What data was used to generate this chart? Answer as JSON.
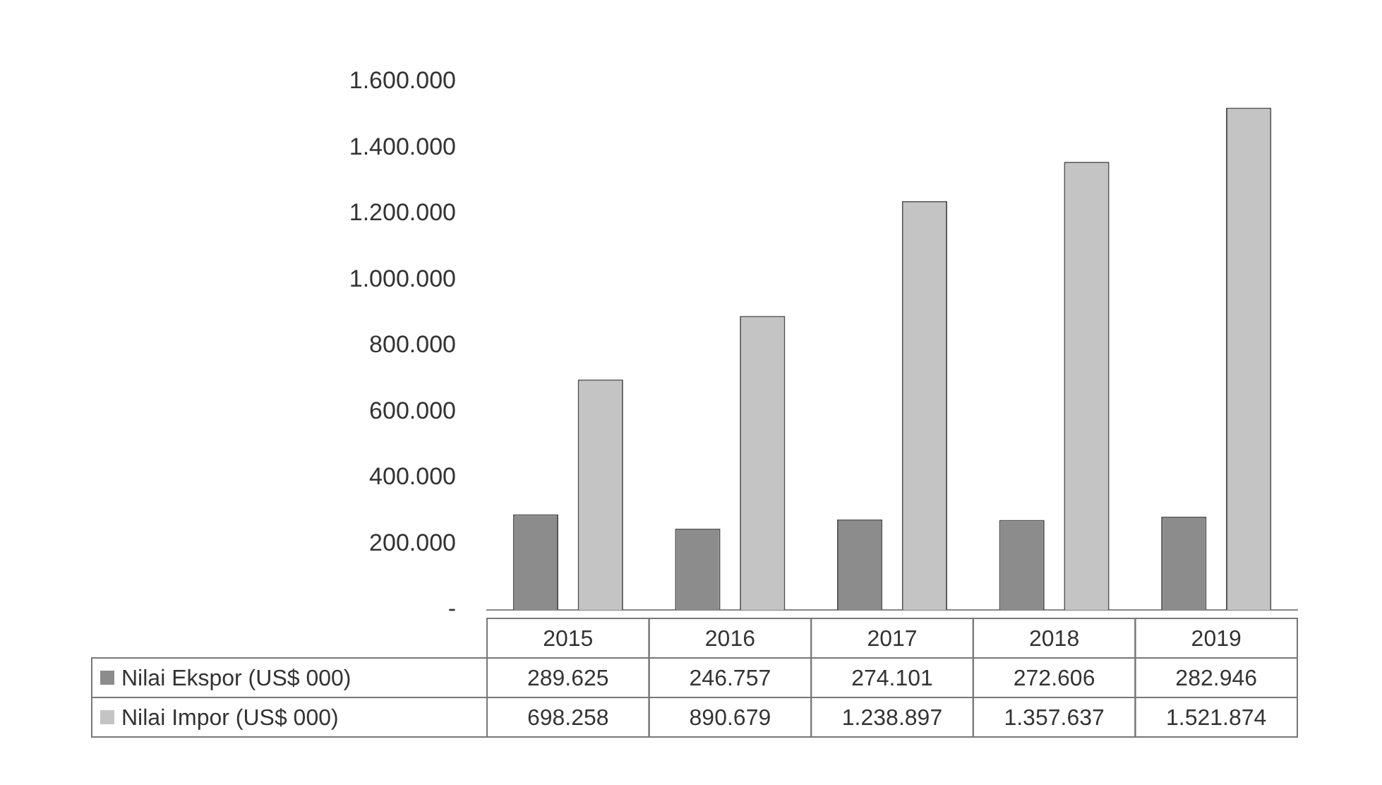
{
  "chart_data": {
    "type": "bar",
    "categories": [
      "2015",
      "2016",
      "2017",
      "2018",
      "2019"
    ],
    "series": [
      {
        "name": "Nilai Ekspor (US$ 000)",
        "color": "#8c8c8c",
        "values": [
          289625,
          246757,
          274101,
          272606,
          282946
        ],
        "value_labels": [
          "289.625",
          "246.757",
          "274.101",
          "272.606",
          "282.946"
        ]
      },
      {
        "name": "Nilai Impor (US$ 000)",
        "color": "#c4c4c4",
        "values": [
          698258,
          890679,
          1238897,
          1357637,
          1521874
        ],
        "value_labels": [
          "698.258",
          "890.679",
          "1.238.897",
          "1.357.637",
          "1.521.874"
        ]
      }
    ],
    "ylim": [
      0,
      1600000
    ],
    "yticks": [
      {
        "value": 0,
        "label": "-"
      },
      {
        "value": 200000,
        "label": "200.000"
      },
      {
        "value": 400000,
        "label": "400.000"
      },
      {
        "value": 600000,
        "label": "600.000"
      },
      {
        "value": 800000,
        "label": "800.000"
      },
      {
        "value": 1000000,
        "label": "1.000.000"
      },
      {
        "value": 1200000,
        "label": "1.200.000"
      },
      {
        "value": 1400000,
        "label": "1.400.000"
      },
      {
        "value": 1600000,
        "label": "1.600.000"
      }
    ],
    "legend": "bottom",
    "grid": false
  }
}
